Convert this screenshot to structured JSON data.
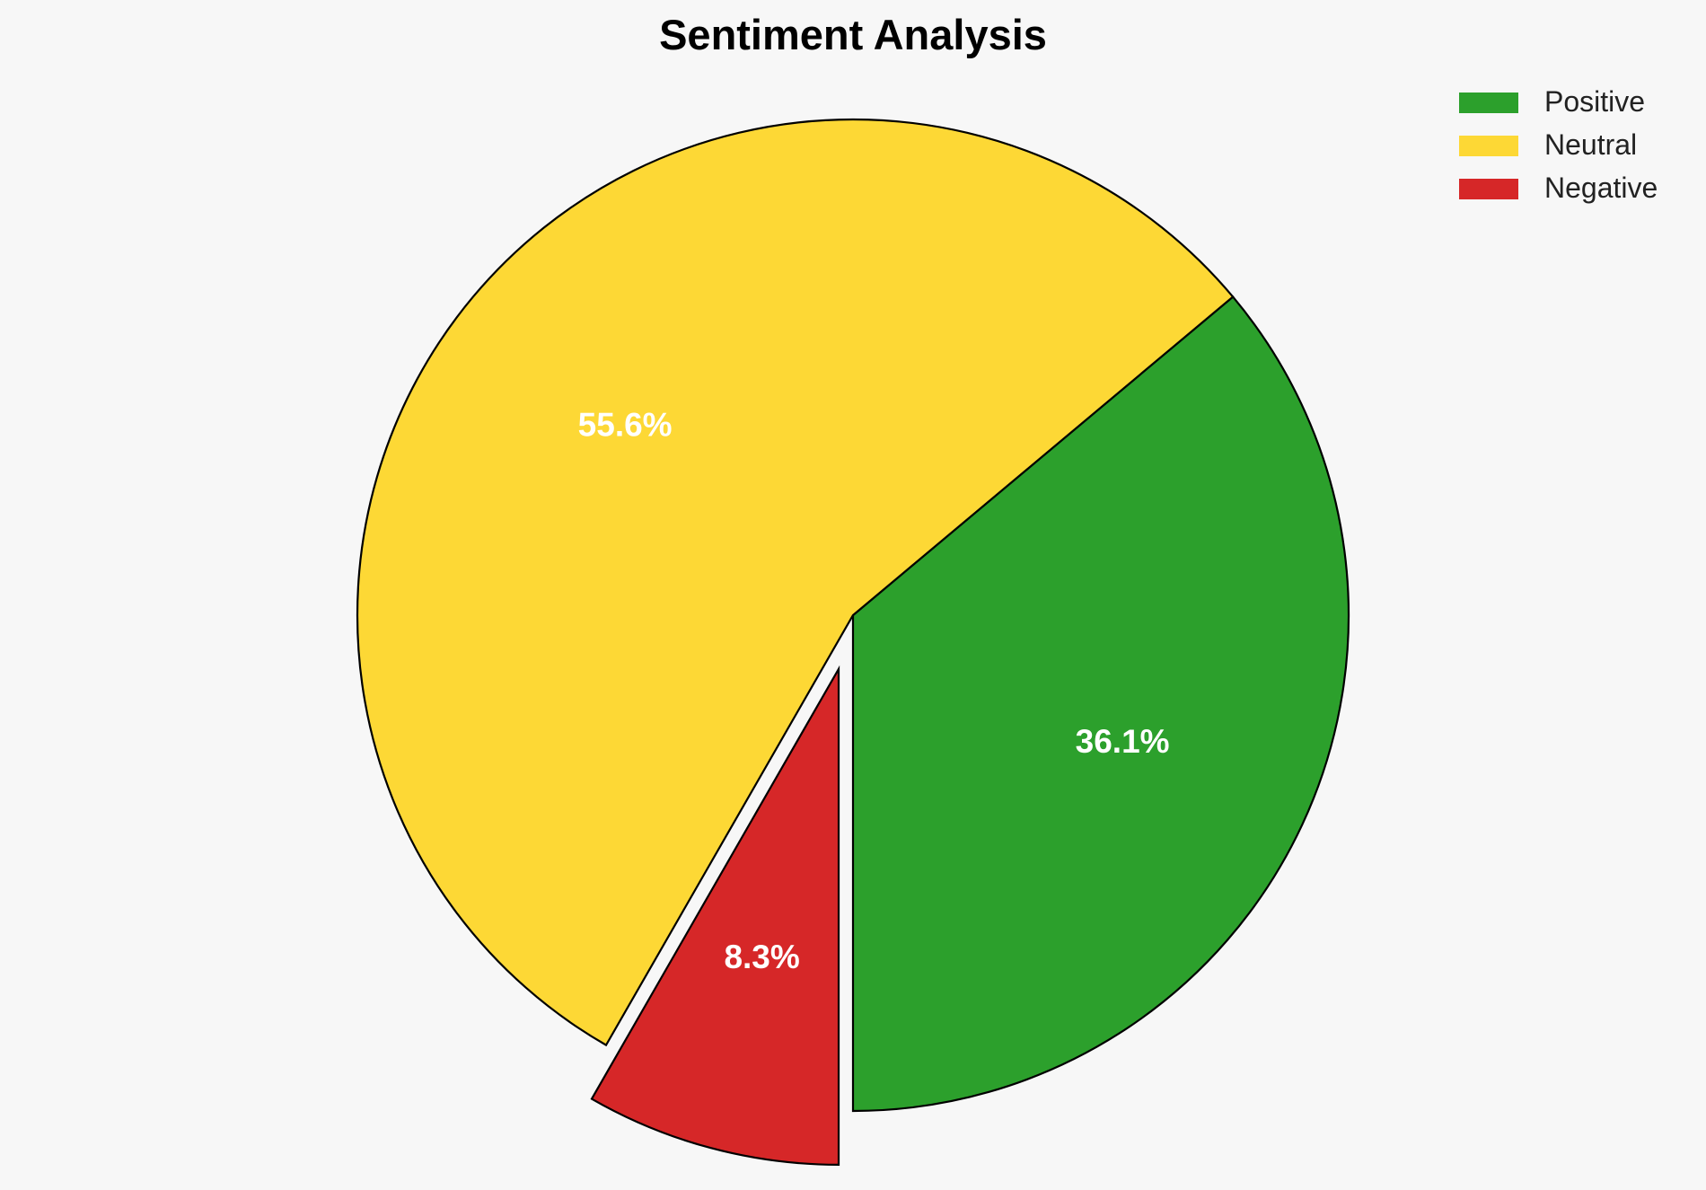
{
  "chart_data": {
    "type": "pie",
    "title": "Sentiment Analysis",
    "slices": [
      {
        "label": "Positive",
        "value": 36.1,
        "display": "36.1%",
        "color": "#2ca02c",
        "exploded": false
      },
      {
        "label": "Neutral",
        "value": 55.6,
        "display": "55.6%",
        "color": "#fdd835",
        "exploded": false
      },
      {
        "label": "Negative",
        "value": 8.3,
        "display": "8.3%",
        "color": "#d62728",
        "exploded": true
      }
    ],
    "legend": {
      "placement": "top-right",
      "entries": [
        "Positive",
        "Neutral",
        "Negative"
      ]
    }
  }
}
